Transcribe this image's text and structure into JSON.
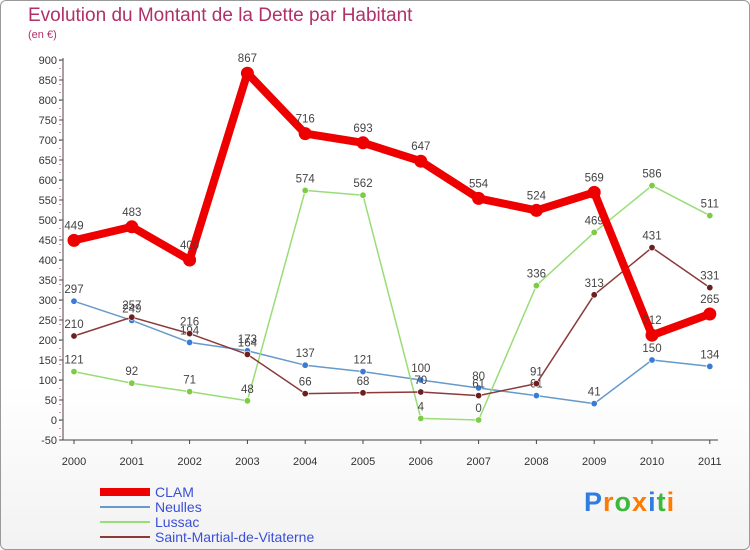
{
  "chart_data": {
    "type": "line",
    "title": "Evolution du Montant de la Dette par Habitant",
    "unit": "(en €)",
    "categories": [
      "2000",
      "2001",
      "2002",
      "2003",
      "2004",
      "2005",
      "2006",
      "2007",
      "2008",
      "2009",
      "2010",
      "2011"
    ],
    "ylim": [
      -50,
      900
    ],
    "yticks": [
      -50,
      0,
      50,
      100,
      150,
      200,
      250,
      300,
      350,
      400,
      450,
      500,
      550,
      600,
      650,
      700,
      750,
      800,
      850,
      900
    ],
    "grid": false,
    "legend_position": "bottom-left",
    "series": [
      {
        "name": "Neulles",
        "color": "#6699cc",
        "marker": "#3a7bd5",
        "width": 1.5,
        "values": [
          297,
          249,
          194,
          173,
          137,
          121,
          100,
          80,
          61,
          41,
          150,
          134
        ],
        "labels": [
          "297",
          "249",
          "194",
          "173",
          "137",
          "121",
          "100",
          "80",
          "61",
          "41",
          "150",
          "134"
        ]
      },
      {
        "name": "Lussac",
        "color": "#99dd77",
        "marker": "#7ccc44",
        "width": 1.5,
        "values": [
          121,
          92,
          71,
          48,
          574,
          562,
          4,
          0,
          336,
          469,
          586,
          511
        ],
        "labels": [
          "121",
          "92",
          "71",
          "48",
          "574",
          "562",
          "4",
          "0",
          "336",
          "469",
          "586",
          "511"
        ]
      },
      {
        "name": "Saint-Martial-de-Vitaterne",
        "color": "#8b3a3a",
        "marker": "#6b1f1f",
        "width": 1.5,
        "values": [
          210,
          257,
          216,
          164,
          66,
          68,
          70,
          61,
          91,
          313,
          431,
          331
        ],
        "labels": [
          "210",
          "257",
          "216",
          "164",
          "66",
          "68",
          "70",
          "61",
          "91",
          "313",
          "431",
          "331"
        ]
      },
      {
        "name": "CLAM",
        "color": "#ee0000",
        "marker": "#ee0000",
        "width": 8,
        "values": [
          449,
          483,
          400,
          867,
          716,
          693,
          647,
          554,
          524,
          569,
          212,
          265
        ],
        "labels": [
          "449",
          "483",
          "400",
          "867",
          "716",
          "693",
          "647",
          "554",
          "524",
          "569",
          "212",
          "265"
        ]
      }
    ],
    "legend_order": [
      "CLAM",
      "Neulles",
      "Lussac",
      "Saint-Martial-de-Vitaterne"
    ]
  },
  "brand": {
    "letters": [
      "P",
      "r",
      "o",
      "x",
      "i",
      "t",
      "i"
    ],
    "colors": [
      "#2f7de1",
      "#ff7a00",
      "#3cb93c",
      "#ff7a00",
      "#2f7de1",
      "#3cb93c",
      "#ff7a00"
    ]
  }
}
